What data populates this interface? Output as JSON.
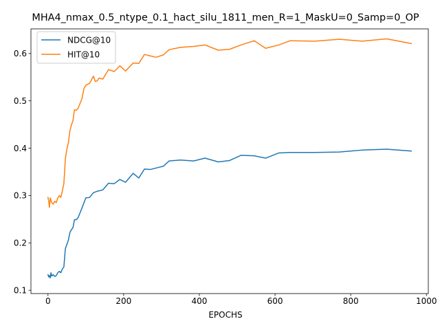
{
  "chart_data": {
    "type": "line",
    "title": "MHA4_nmax_0.5_ntype_0.1_hact_silu_1811_men_R=1_MaskU=0_Samp=0_OP",
    "xlabel": "EPOCHS",
    "ylabel": "",
    "xlim": [
      -45,
      1005
    ],
    "ylim": [
      0.093,
      0.652
    ],
    "xticks": [
      0,
      200,
      400,
      600,
      800,
      1000
    ],
    "yticks": [
      0.1,
      0.2,
      0.3,
      0.4,
      0.5,
      0.6
    ],
    "grid": false,
    "legend_position": "top-left",
    "series": [
      {
        "name": "NDCG@10",
        "color": "#1f77b4",
        "points": [
          [
            0,
            0.133
          ],
          [
            2,
            0.128
          ],
          [
            4,
            0.131
          ],
          [
            6,
            0.126
          ],
          [
            8,
            0.137
          ],
          [
            10,
            0.13
          ],
          [
            14,
            0.133
          ],
          [
            18,
            0.129
          ],
          [
            22,
            0.131
          ],
          [
            26,
            0.137
          ],
          [
            30,
            0.14
          ],
          [
            34,
            0.137
          ],
          [
            38,
            0.145
          ],
          [
            42,
            0.149
          ],
          [
            46,
            0.188
          ],
          [
            50,
            0.197
          ],
          [
            54,
            0.206
          ],
          [
            58,
            0.222
          ],
          [
            62,
            0.228
          ],
          [
            66,
            0.232
          ],
          [
            70,
            0.249
          ],
          [
            75,
            0.249
          ],
          [
            80,
            0.254
          ],
          [
            90,
            0.274
          ],
          [
            100,
            0.295
          ],
          [
            110,
            0.296
          ],
          [
            120,
            0.306
          ],
          [
            130,
            0.309
          ],
          [
            145,
            0.312
          ],
          [
            160,
            0.326
          ],
          [
            175,
            0.325
          ],
          [
            190,
            0.334
          ],
          [
            205,
            0.328
          ],
          [
            225,
            0.347
          ],
          [
            240,
            0.337
          ],
          [
            255,
            0.356
          ],
          [
            270,
            0.355
          ],
          [
            290,
            0.359
          ],
          [
            305,
            0.362
          ],
          [
            320,
            0.373
          ],
          [
            350,
            0.375
          ],
          [
            385,
            0.373
          ],
          [
            415,
            0.379
          ],
          [
            450,
            0.371
          ],
          [
            480,
            0.374
          ],
          [
            510,
            0.385
          ],
          [
            545,
            0.384
          ],
          [
            575,
            0.379
          ],
          [
            610,
            0.39
          ],
          [
            640,
            0.391
          ],
          [
            705,
            0.391
          ],
          [
            770,
            0.392
          ],
          [
            830,
            0.396
          ],
          [
            895,
            0.398
          ],
          [
            960,
            0.394
          ]
        ]
      },
      {
        "name": "HIT@10",
        "color": "#ff7f0e",
        "points": [
          [
            0,
            0.296
          ],
          [
            2,
            0.288
          ],
          [
            4,
            0.275
          ],
          [
            6,
            0.295
          ],
          [
            8,
            0.29
          ],
          [
            10,
            0.285
          ],
          [
            14,
            0.282
          ],
          [
            18,
            0.288
          ],
          [
            22,
            0.285
          ],
          [
            26,
            0.295
          ],
          [
            30,
            0.3
          ],
          [
            34,
            0.296
          ],
          [
            38,
            0.31
          ],
          [
            42,
            0.325
          ],
          [
            46,
            0.378
          ],
          [
            50,
            0.398
          ],
          [
            54,
            0.412
          ],
          [
            58,
            0.437
          ],
          [
            62,
            0.449
          ],
          [
            66,
            0.458
          ],
          [
            70,
            0.481
          ],
          [
            75,
            0.48
          ],
          [
            80,
            0.485
          ],
          [
            90,
            0.505
          ],
          [
            95,
            0.526
          ],
          [
            100,
            0.533
          ],
          [
            110,
            0.537
          ],
          [
            120,
            0.552
          ],
          [
            125,
            0.541
          ],
          [
            130,
            0.542
          ],
          [
            135,
            0.548
          ],
          [
            145,
            0.546
          ],
          [
            160,
            0.566
          ],
          [
            175,
            0.562
          ],
          [
            190,
            0.574
          ],
          [
            205,
            0.563
          ],
          [
            225,
            0.58
          ],
          [
            240,
            0.579
          ],
          [
            255,
            0.598
          ],
          [
            270,
            0.595
          ],
          [
            285,
            0.592
          ],
          [
            305,
            0.597
          ],
          [
            320,
            0.608
          ],
          [
            350,
            0.613
          ],
          [
            385,
            0.615
          ],
          [
            415,
            0.618
          ],
          [
            450,
            0.607
          ],
          [
            480,
            0.609
          ],
          [
            510,
            0.618
          ],
          [
            545,
            0.627
          ],
          [
            575,
            0.611
          ],
          [
            610,
            0.618
          ],
          [
            640,
            0.627
          ],
          [
            705,
            0.626
          ],
          [
            770,
            0.63
          ],
          [
            830,
            0.626
          ],
          [
            895,
            0.631
          ],
          [
            960,
            0.621
          ]
        ]
      }
    ]
  }
}
